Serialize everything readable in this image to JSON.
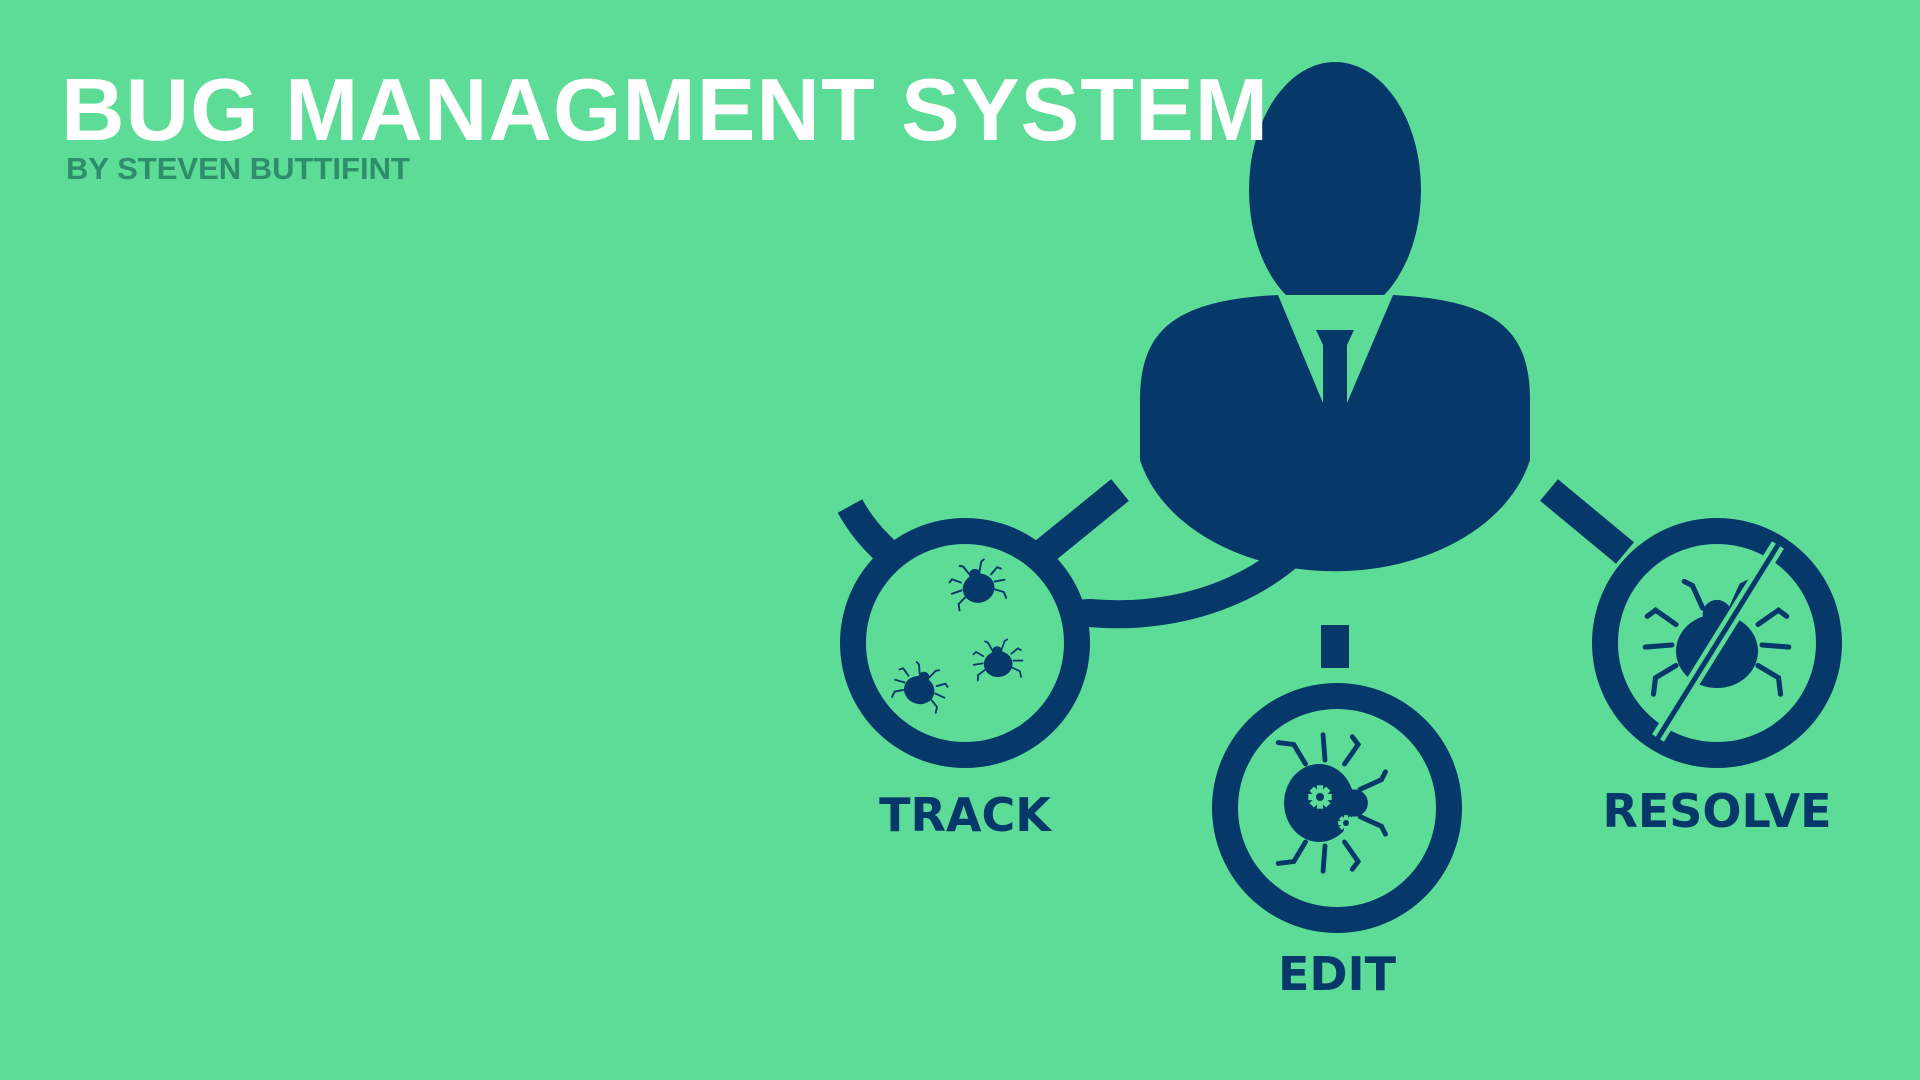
{
  "colors": {
    "background": "#5cdc96",
    "primary": "#06386a",
    "title": "#ffffff",
    "subtitle": "#2e8e6c"
  },
  "header": {
    "title": "BUG MANAGMENT SYSTEM",
    "subtitle": "BY STEVEN BUTTIFINT"
  },
  "diagram": {
    "person_icon": "user-silhouette-icon",
    "nodes": [
      {
        "label": "TRACK",
        "icon": "multiple-bugs-icon"
      },
      {
        "label": "EDIT",
        "icon": "bug-with-gears-icon"
      },
      {
        "label": "RESOLVE",
        "icon": "crossed-out-bug-icon"
      }
    ]
  }
}
